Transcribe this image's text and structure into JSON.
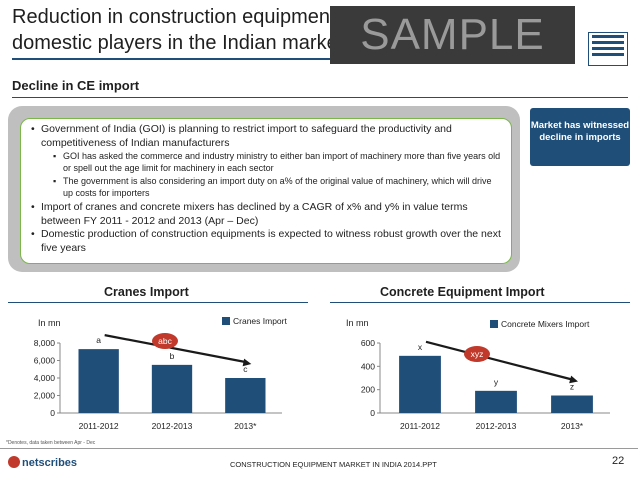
{
  "slide": {
    "title": "Reduction in construction equipment imports will benefit the domestic players in the Indian market",
    "watermark": "SAMPLE",
    "subheading": "Decline in CE import",
    "bullets": [
      {
        "text": "Government of India (GOI) is planning to restrict import to safeguard the productivity and competitiveness of Indian manufacturers",
        "sub": [
          "GOI has asked the commerce and industry ministry to either ban import of machinery more than five years old or spell out the age limit for machinery in each sector",
          "The government is also considering an import duty on a% of the original value of machinery, which will drive up costs for importers"
        ]
      },
      {
        "text": "Import of cranes and concrete mixers has declined by a CAGR of x% and y% in value terms between FY 2011 - 2012 and 2013 (Apr – Dec)",
        "sub": []
      },
      {
        "text": "Domestic production of construction equipments is expected to witness robust growth over the next five years",
        "sub": []
      }
    ],
    "callout": "Market has witnessed decline in imports",
    "footnote": "*Denotes, data taken between Apr - Dec",
    "brand": "netscribes",
    "footer": "CONSTRUCTION EQUIPMENT MARKET IN INDIA 2014.PPT",
    "page": "22"
  },
  "chart_data": [
    {
      "type": "bar",
      "title": "Cranes Import",
      "ylabel": "In mn",
      "categories": [
        "2011-2012",
        "2012-2013",
        "2013*"
      ],
      "series": [
        {
          "name": "Cranes Import",
          "values": [
            7300,
            5500,
            4000
          ],
          "labels": [
            "a",
            "b",
            "c"
          ]
        }
      ],
      "ylim": [
        0,
        8000
      ],
      "yticks": [
        0,
        2000,
        4000,
        6000,
        8000
      ],
      "ytick_labels": [
        "0",
        "2,000",
        "4,000",
        "6,000",
        "8,000"
      ],
      "annotation": "abc",
      "color": "#1f4e79",
      "accent": "#c0392b",
      "legend": "top-right"
    },
    {
      "type": "bar",
      "title": "Concrete Equipment Import",
      "ylabel": "In mn",
      "categories": [
        "2011-2012",
        "2012-2013",
        "2013*"
      ],
      "series": [
        {
          "name": "Concrete Mixers Import",
          "values": [
            490,
            190,
            150
          ],
          "labels": [
            "x",
            "y",
            "z"
          ]
        }
      ],
      "ylim": [
        0,
        600
      ],
      "yticks": [
        0,
        200,
        400,
        600
      ],
      "ytick_labels": [
        "0",
        "200",
        "400",
        "600"
      ],
      "annotation": "xyz",
      "color": "#1f4e79",
      "accent": "#c0392b",
      "legend": "top-right"
    }
  ]
}
